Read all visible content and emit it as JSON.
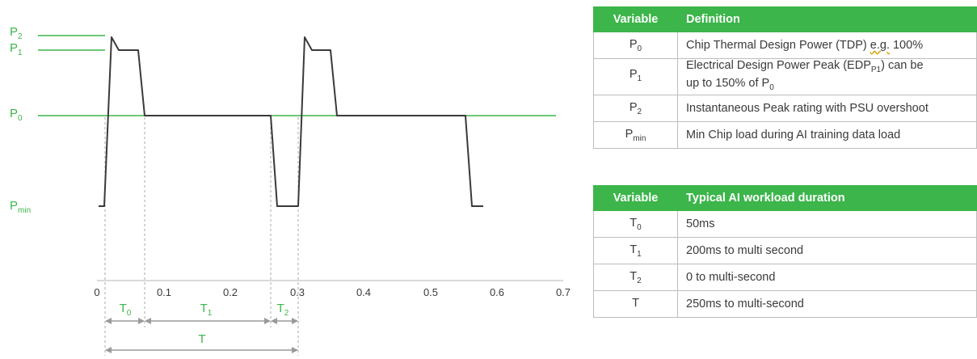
{
  "colors": {
    "green": "#3cb54a",
    "trace": "#3a3a3a",
    "grid": "#b0b0b0"
  },
  "chart": {
    "y_labels": [
      {
        "main": "P",
        "sub": "2"
      },
      {
        "main": "P",
        "sub": "1"
      },
      {
        "main": "P",
        "sub": "0"
      },
      {
        "main": "P",
        "sub": "min"
      }
    ],
    "x_ticks": [
      "0",
      "0.1",
      "0.2",
      "0.3",
      "0.4",
      "0.5",
      "0.6",
      "0.7"
    ],
    "durations": [
      {
        "main": "T",
        "sub": "0"
      },
      {
        "main": "T",
        "sub": "1"
      },
      {
        "main": "T",
        "sub": "2"
      }
    ],
    "total_label": "T"
  },
  "table1": {
    "headers": [
      "Variable",
      "Definition"
    ],
    "rows": [
      {
        "var": "P",
        "var_sub": "0",
        "def_html": "Chip Thermal Design Power (TDP) <span class=\"squig\">e.g.</span> 100%"
      },
      {
        "var": "P",
        "var_sub": "1",
        "def_html": "Electrical Design Power Peak (EDP<sub>P1</sub>) can be<br>up to 150% of P<sub>0</sub>"
      },
      {
        "var": "P",
        "var_sub": "2",
        "def_html": "Instantaneous Peak rating with PSU overshoot"
      },
      {
        "var": "P",
        "var_sub": "min",
        "def_html": "Min Chip load during AI training data load"
      }
    ]
  },
  "table2": {
    "headers": [
      "Variable",
      "Typical AI workload duration"
    ],
    "rows": [
      {
        "var": "T",
        "var_sub": "0",
        "def": "50ms"
      },
      {
        "var": "T",
        "var_sub": "1",
        "def": "200ms to multi second"
      },
      {
        "var": "T",
        "var_sub": "2",
        "def": "0 to multi-second"
      },
      {
        "var": "T",
        "var_sub": "",
        "def": "250ms to multi-second"
      }
    ]
  }
}
